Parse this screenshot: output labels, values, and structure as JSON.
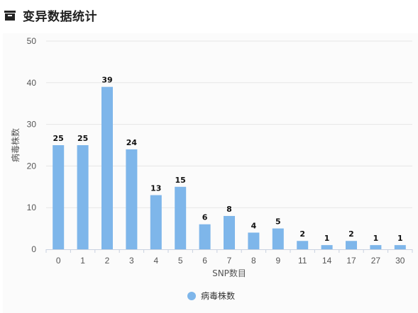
{
  "header": {
    "title": "变异数据统计",
    "icon": "inbox-tray-icon"
  },
  "chart_data": {
    "type": "bar",
    "title": "",
    "xlabel": "SNP数目",
    "ylabel": "病毒株数",
    "categories": [
      "0",
      "1",
      "2",
      "3",
      "4",
      "5",
      "6",
      "7",
      "8",
      "9",
      "11",
      "14",
      "17",
      "27",
      "30"
    ],
    "series": [
      {
        "name": "病毒株数",
        "values": [
          25,
          25,
          39,
          24,
          13,
          15,
          6,
          8,
          4,
          5,
          2,
          1,
          2,
          1,
          1
        ],
        "color": "#7eb6ea"
      }
    ],
    "ylim": [
      0,
      50
    ],
    "yticks": [
      "0",
      "10",
      "20",
      "30",
      "40",
      "50"
    ],
    "grid": true,
    "data_labels": true,
    "legend": "bottom-center"
  }
}
